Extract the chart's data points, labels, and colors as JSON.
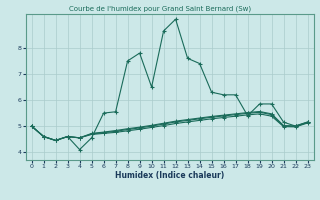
{
  "title": "Courbe de l'humidex pour Grand Saint Bernard (Sw)",
  "xlabel": "Humidex (Indice chaleur)",
  "ylabel": "",
  "bg_color": "#cce8e8",
  "line_color": "#1a6b5a",
  "grid_color": "#aacccc",
  "xlim": [
    -0.5,
    23.5
  ],
  "ylim": [
    3.7,
    9.3
  ],
  "yticks": [
    4,
    5,
    6,
    7,
    8
  ],
  "xticks": [
    0,
    1,
    2,
    3,
    4,
    5,
    6,
    7,
    8,
    9,
    10,
    11,
    12,
    13,
    14,
    15,
    16,
    17,
    18,
    19,
    20,
    21,
    22,
    23
  ],
  "line1_x": [
    0,
    1,
    2,
    3,
    4,
    5,
    6,
    7,
    8,
    9,
    10,
    11,
    12,
    13,
    14,
    15,
    16,
    17,
    18,
    19,
    20,
    21,
    22,
    23
  ],
  "line1_y": [
    5.0,
    4.6,
    4.45,
    4.6,
    4.1,
    4.55,
    5.5,
    5.55,
    7.5,
    7.8,
    6.5,
    8.65,
    9.1,
    7.6,
    7.4,
    6.3,
    6.2,
    6.2,
    5.4,
    5.85,
    5.85,
    5.15,
    5.0,
    5.15
  ],
  "line2_x": [
    0,
    1,
    2,
    3,
    4,
    5,
    6,
    7,
    8,
    9,
    10,
    11,
    12,
    13,
    14,
    15,
    16,
    17,
    18,
    19,
    20,
    21,
    22,
    23
  ],
  "line2_y": [
    5.0,
    4.6,
    4.45,
    4.6,
    4.55,
    4.68,
    4.72,
    4.76,
    4.82,
    4.88,
    4.95,
    5.02,
    5.1,
    5.16,
    5.22,
    5.28,
    5.33,
    5.38,
    5.43,
    5.47,
    5.38,
    4.98,
    4.97,
    5.12
  ],
  "line3_x": [
    0,
    1,
    2,
    3,
    4,
    5,
    6,
    7,
    8,
    9,
    10,
    11,
    12,
    13,
    14,
    15,
    16,
    17,
    18,
    19,
    20,
    21,
    22,
    23
  ],
  "line3_y": [
    5.0,
    4.6,
    4.45,
    4.6,
    4.55,
    4.7,
    4.75,
    4.8,
    4.87,
    4.93,
    5.0,
    5.08,
    5.16,
    5.22,
    5.28,
    5.34,
    5.39,
    5.44,
    5.49,
    5.53,
    5.44,
    5.0,
    4.99,
    5.14
  ],
  "line4_x": [
    0,
    1,
    2,
    3,
    4,
    5,
    6,
    7,
    8,
    9,
    10,
    11,
    12,
    13,
    14,
    15,
    16,
    17,
    18,
    19,
    20,
    21,
    22,
    23
  ],
  "line4_y": [
    5.0,
    4.6,
    4.45,
    4.6,
    4.55,
    4.72,
    4.77,
    4.83,
    4.9,
    4.96,
    5.03,
    5.11,
    5.19,
    5.25,
    5.31,
    5.37,
    5.42,
    5.47,
    5.52,
    5.56,
    5.47,
    5.02,
    5.01,
    5.16
  ]
}
